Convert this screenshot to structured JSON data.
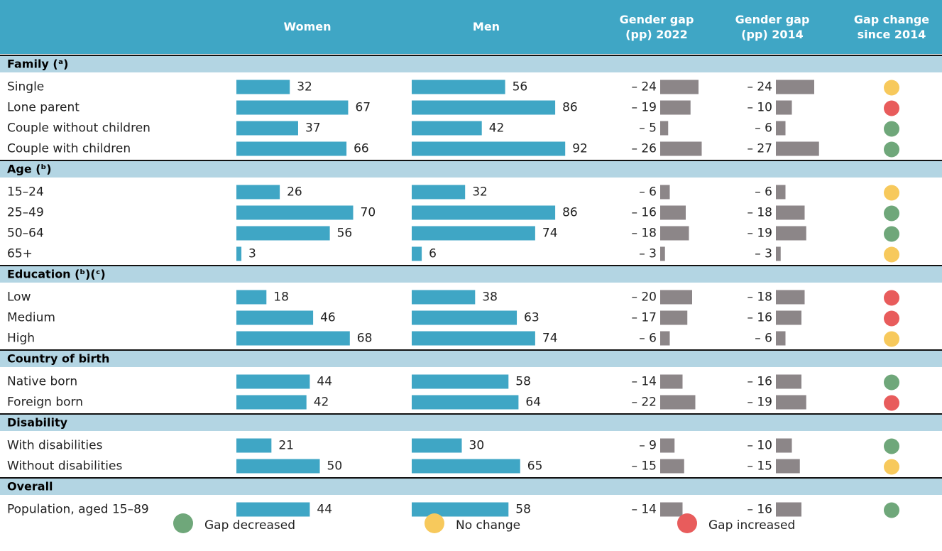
{
  "table": {
    "headers": {
      "women": "Women",
      "men": "Men",
      "gap2022": "Gender gap\n(pp) 2022",
      "gap2014": "Gender gap\n(pp) 2014",
      "change": "Gap change\nsince 2014"
    },
    "groups": [
      {
        "title": "Family (ᵃ)",
        "rows": [
          {
            "label": "Single",
            "women": 32,
            "men": 56,
            "gap2022": {
              "value": -24,
              "label": "– 24"
            },
            "gap2014": {
              "value": -24,
              "label": "– 24"
            },
            "change": "#f7c95c"
          },
          {
            "label": "Lone parent",
            "women": 67,
            "men": 86,
            "gap2022": {
              "value": -19,
              "label": "– 19"
            },
            "gap2014": {
              "value": -10,
              "label": "– 10"
            },
            "change": "#e85c5c"
          },
          {
            "label": "Couple without children",
            "women": 37,
            "men": 42,
            "gap2022": {
              "value": -5,
              "label": "– 5"
            },
            "gap2014": {
              "value": -6,
              "label": "– 6"
            },
            "change": "#6fa77a"
          },
          {
            "label": "Couple with children",
            "women": 66,
            "men": 92,
            "gap2022": {
              "value": -26,
              "label": "– 26"
            },
            "gap2014": {
              "value": -27,
              "label": "– 27"
            },
            "change": "#6fa77a"
          }
        ]
      },
      {
        "title": "Age (ᵇ)",
        "rows": [
          {
            "label": "15–24",
            "women": 26,
            "men": 32,
            "gap2022": {
              "value": -6,
              "label": "– 6"
            },
            "gap2014": {
              "value": -6,
              "label": "– 6"
            },
            "change": "#f7c95c"
          },
          {
            "label": "25–49",
            "women": 70,
            "men": 86,
            "gap2022": {
              "value": -16,
              "label": "– 16"
            },
            "gap2014": {
              "value": -18,
              "label": "– 18"
            },
            "change": "#6fa77a"
          },
          {
            "label": "50–64",
            "women": 56,
            "men": 74,
            "gap2022": {
              "value": -18,
              "label": "– 18"
            },
            "gap2014": {
              "value": -19,
              "label": "– 19"
            },
            "change": "#6fa77a"
          },
          {
            "label": "65+",
            "women": 3,
            "men": 6,
            "gap2022": {
              "value": -3,
              "label": "– 3"
            },
            "gap2014": {
              "value": -3,
              "label": "– 3"
            },
            "change": "#f7c95c"
          }
        ]
      },
      {
        "title": "Education (ᵇ)(ᶜ)",
        "rows": [
          {
            "label": "Low",
            "women": 18,
            "men": 38,
            "gap2022": {
              "value": -20,
              "label": "– 20"
            },
            "gap2014": {
              "value": -18,
              "label": "– 18"
            },
            "change": "#e85c5c"
          },
          {
            "label": "Medium",
            "women": 46,
            "men": 63,
            "gap2022": {
              "value": -17,
              "label": "– 17"
            },
            "gap2014": {
              "value": -16,
              "label": "– 16"
            },
            "change": "#e85c5c"
          },
          {
            "label": "High",
            "women": 68,
            "men": 74,
            "gap2022": {
              "value": -6,
              "label": "– 6"
            },
            "gap2014": {
              "value": -6,
              "label": "– 6"
            },
            "change": "#f7c95c"
          }
        ]
      },
      {
        "title": "Country of birth",
        "rows": [
          {
            "label": "Native born",
            "women": 44,
            "men": 58,
            "gap2022": {
              "value": -14,
              "label": "– 14"
            },
            "gap2014": {
              "value": -16,
              "label": "– 16"
            },
            "change": "#6fa77a"
          },
          {
            "label": "Foreign born",
            "women": 42,
            "men": 64,
            "gap2022": {
              "value": -22,
              "label": "– 22"
            },
            "gap2014": {
              "value": -19,
              "label": "– 19"
            },
            "change": "#e85c5c"
          }
        ]
      },
      {
        "title": "Disability",
        "rows": [
          {
            "label": "With disabilities",
            "women": 21,
            "men": 30,
            "gap2022": {
              "value": -9,
              "label": "– 9"
            },
            "gap2014": {
              "value": -10,
              "label": "– 10"
            },
            "change": "#6fa77a"
          },
          {
            "label": "Without disabilities",
            "women": 50,
            "men": 65,
            "gap2022": {
              "value": -15,
              "label": "– 15"
            },
            "gap2014": {
              "value": -15,
              "label": "– 15"
            },
            "change": "#f7c95c"
          }
        ]
      },
      {
        "title": "Overall",
        "rows": [
          {
            "label": "Population, aged 15–89",
            "women": 44,
            "men": 58,
            "gap2022": {
              "value": -14,
              "label": "– 14"
            },
            "gap2014": {
              "value": -16,
              "label": "– 16"
            },
            "change": "#6fa77a"
          }
        ]
      }
    ],
    "bar_color": "#3fa6c5",
    "gap_color": "#8c8688",
    "legend": [
      {
        "label": "Gap decreased",
        "color": "#6fa77a"
      },
      {
        "label": "No change",
        "color": "#f7c95c"
      },
      {
        "label": "Gap increased",
        "color": "#e85c5c"
      }
    ]
  }
}
